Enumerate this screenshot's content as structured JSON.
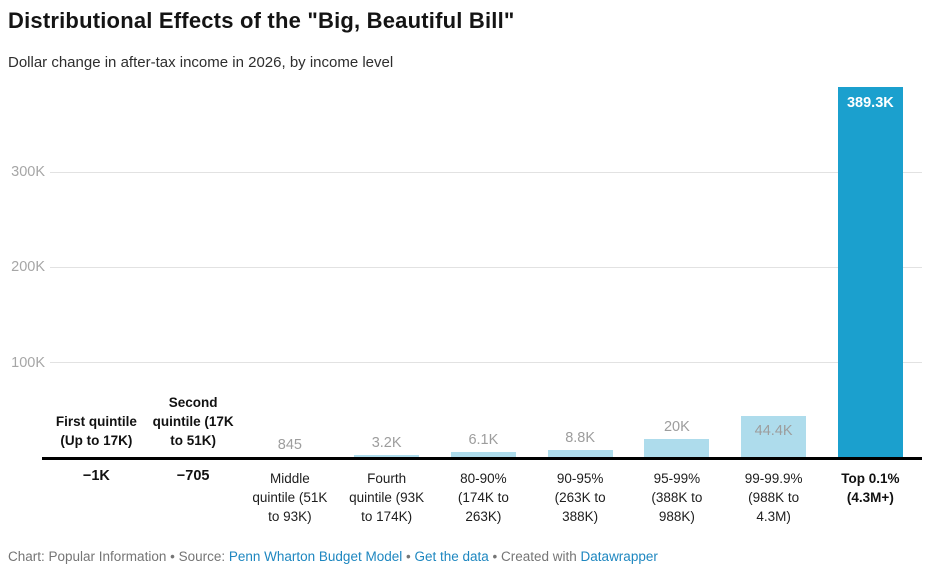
{
  "header": {
    "title": "Distributional Effects of the \"Big, Beautiful Bill\"",
    "subtitle": "Dollar change in after-tax income in 2026, by income level"
  },
  "footer": {
    "chart_label": "Chart: ",
    "chart_credit": "Popular Information",
    "separator": " • ",
    "source_label": "Source: ",
    "source_link": "Penn Wharton Budget Model",
    "get_data_link": "Get the data",
    "created_label": "Created with ",
    "tool_link": "Datawrapper"
  },
  "colors": {
    "bar_light": "#aedcec",
    "bar_dark": "#1ba0ce",
    "link": "#1e87c0",
    "grid": "#e2e2e2",
    "axis": "#000000",
    "value_gray": "#9d9d9d",
    "tick": "#a6a6a6"
  },
  "chart_data": {
    "type": "bar",
    "title": "Distributional Effects of the \"Big, Beautiful Bill\"",
    "subtitle": "Dollar change in after-tax income in 2026, by income level",
    "categories": [
      "First quintile (Up to 17K)",
      "Second quintile (17K to 51K)",
      "Middle quintile (51K to 93K)",
      "Fourth quintile (93K to 174K)",
      "80-90% (174K to 263K)",
      "90-95% (263K to 388K)",
      "95-99% (388K to 988K)",
      "99-99.9% (988K to 4.3M)",
      "Top 0.1% (4.3M+)"
    ],
    "category_label_lines": [
      [
        "First quintile",
        "(Up to 17K)"
      ],
      [
        "Second",
        "quintile (17K",
        "to 51K)"
      ],
      [
        "Middle",
        "quintile (51K",
        "to 93K)"
      ],
      [
        "Fourth",
        "quintile (93K",
        "to 174K)"
      ],
      [
        "80-90%",
        "(174K to",
        "263K)"
      ],
      [
        "90-95%",
        "(263K to",
        "388K)"
      ],
      [
        "95-99%",
        "(388K to",
        "988K)"
      ],
      [
        "99-99.9%",
        "(988K to",
        "4.3M)"
      ],
      [
        "Top 0.1%",
        "(4.3M+)"
      ]
    ],
    "values": [
      -1000,
      -705,
      845,
      3200,
      6100,
      8800,
      20000,
      44400,
      389300
    ],
    "value_labels": [
      "−1K",
      "−705",
      "845",
      "3.2K",
      "6.1K",
      "8.8K",
      "20K",
      "44.4K",
      "389.3K"
    ],
    "emphasized": [
      true,
      true,
      false,
      false,
      false,
      false,
      false,
      false,
      true
    ],
    "y_ticks": [
      {
        "value": 100000,
        "label": "100K"
      },
      {
        "value": 200000,
        "label": "200K"
      },
      {
        "value": 300000,
        "label": "300K"
      }
    ],
    "ylim": [
      0,
      400000
    ],
    "grid": true,
    "legend": "none",
    "ylabel": "",
    "xlabel": ""
  }
}
